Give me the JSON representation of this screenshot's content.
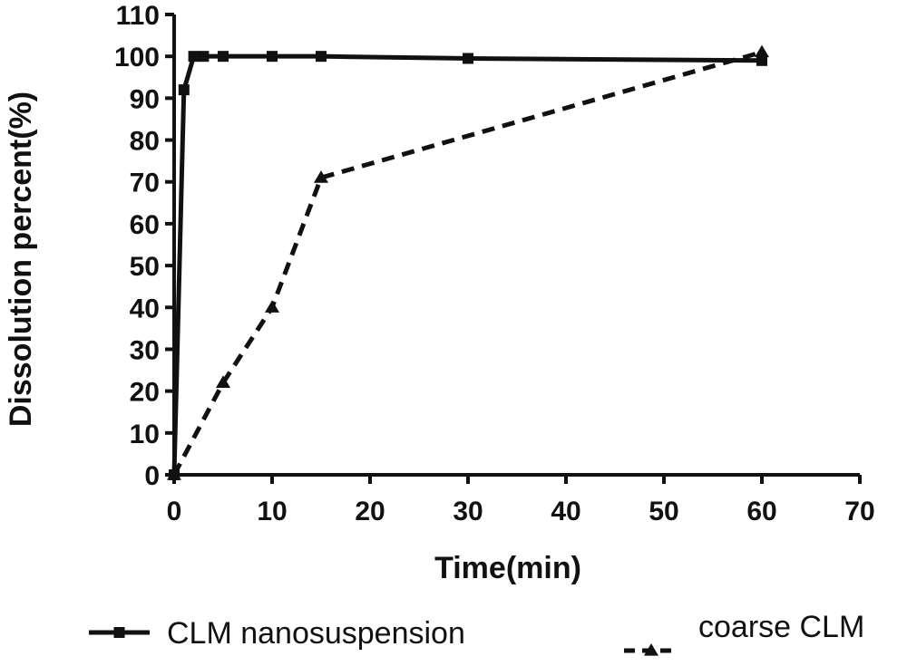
{
  "chart_data": {
    "type": "line",
    "title": "",
    "xlabel": "Time(min)",
    "ylabel": "Dissolution percent(%)",
    "xlim": [
      0,
      70
    ],
    "ylim": [
      0,
      110
    ],
    "xticks": [
      0,
      10,
      20,
      30,
      40,
      50,
      60,
      70
    ],
    "yticks": [
      0,
      10,
      20,
      30,
      40,
      50,
      60,
      70,
      80,
      90,
      100,
      110
    ],
    "grid": false,
    "legend": "bottom",
    "series": [
      {
        "name": "CLM nanosuspension",
        "line_style": "solid",
        "marker": "square",
        "color": "#111111",
        "x": [
          0,
          1,
          2,
          3,
          5,
          10,
          15,
          30,
          60
        ],
        "y": [
          0,
          92,
          100,
          100,
          100,
          100,
          100,
          99.5,
          99
        ]
      },
      {
        "name": "coarse CLM",
        "line_style": "dashed",
        "marker": "triangle",
        "color": "#111111",
        "x": [
          0,
          5,
          10,
          15,
          60
        ],
        "y": [
          0,
          22,
          40,
          71,
          101
        ]
      }
    ]
  }
}
